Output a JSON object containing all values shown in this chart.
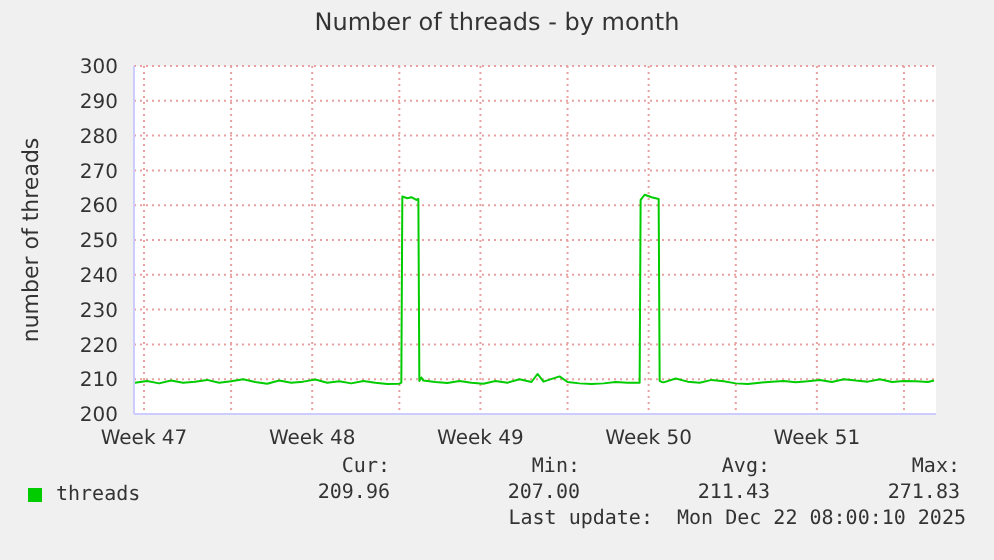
{
  "chart_data": {
    "type": "line",
    "title": "Number of threads - by month",
    "ylabel": "number of threads",
    "xlim": [
      "2025-11-18T23:00",
      "2025-12-22T08:00"
    ],
    "xticks": [
      {
        "value": "2025-11-19T09:00",
        "label": "Week 47"
      },
      {
        "value": "2025-11-23",
        "label": null
      },
      {
        "value": "2025-11-26T09:00",
        "label": "Week 48"
      },
      {
        "value": "2025-11-30",
        "label": null
      },
      {
        "value": "2025-12-03T09:00",
        "label": "Week 49"
      },
      {
        "value": "2025-12-07",
        "label": null
      },
      {
        "value": "2025-12-10T09:00",
        "label": "Week 50"
      },
      {
        "value": "2025-12-14",
        "label": null
      },
      {
        "value": "2025-12-17T09:00",
        "label": "Week 51"
      },
      {
        "value": "2025-12-21",
        "label": null
      }
    ],
    "ylim": [
      200,
      300
    ],
    "yticks": [
      200,
      210,
      220,
      230,
      240,
      250,
      260,
      270,
      280,
      290,
      300
    ],
    "grid": true,
    "legend": "bottom left",
    "marker": "none",
    "line_style": "solid",
    "series": [
      {
        "name": "threads",
        "color": "#00cc00",
        "x": [
          "2025-11-19T00:00",
          "2025-11-19T12:00",
          "2025-11-20T00:00",
          "2025-11-20T12:00",
          "2025-11-21T00:00",
          "2025-11-21T12:00",
          "2025-11-22T00:00",
          "2025-11-22T12:00",
          "2025-11-23T00:00",
          "2025-11-23T12:00",
          "2025-11-24T00:00",
          "2025-11-24T12:00",
          "2025-11-25T00:00",
          "2025-11-25T12:00",
          "2025-11-26T00:00",
          "2025-11-26T12:00",
          "2025-11-27T00:00",
          "2025-11-27T12:00",
          "2025-11-28T00:00",
          "2025-11-28T12:00",
          "2025-11-29T00:00",
          "2025-11-29T12:00",
          "2025-11-30T00:00",
          "2025-11-30T02:00",
          "2025-11-30T03:00",
          "2025-11-30T08:00",
          "2025-11-30T12:00",
          "2025-11-30T17:00",
          "2025-11-30T19:00",
          "2025-11-30T20:00",
          "2025-11-30T22:00",
          "2025-12-01T00:00",
          "2025-12-01T12:00",
          "2025-12-02T00:00",
          "2025-12-02T12:00",
          "2025-12-03T00:00",
          "2025-12-03T12:00",
          "2025-12-04T00:00",
          "2025-12-04T12:00",
          "2025-12-05T00:00",
          "2025-12-05T12:00",
          "2025-12-05T18:00",
          "2025-12-06T00:00",
          "2025-12-06T16:00",
          "2025-12-07T00:00",
          "2025-12-07T12:00",
          "2025-12-08T00:00",
          "2025-12-08T12:00",
          "2025-12-09T00:00",
          "2025-12-09T12:00",
          "2025-12-10T00:00",
          "2025-12-10T01:00",
          "2025-12-10T05:00",
          "2025-12-10T12:00",
          "2025-12-10T19:00",
          "2025-12-10T20:00",
          "2025-12-10T22:00",
          "2025-12-11T00:00",
          "2025-12-11T12:00",
          "2025-12-12T00:00",
          "2025-12-12T12:00",
          "2025-12-13T00:00",
          "2025-12-13T12:00",
          "2025-12-14T00:00",
          "2025-12-14T12:00",
          "2025-12-15T00:00",
          "2025-12-15T12:00",
          "2025-12-16T00:00",
          "2025-12-16T12:00",
          "2025-12-17T00:00",
          "2025-12-17T12:00",
          "2025-12-18T00:00",
          "2025-12-18T12:00",
          "2025-12-19T00:00",
          "2025-12-19T12:00",
          "2025-12-20T00:00",
          "2025-12-20T12:00",
          "2025-12-21T00:00",
          "2025-12-21T12:00",
          "2025-12-22T00:00",
          "2025-12-22T06:00"
        ],
        "values": [
          209,
          209.5,
          208.8,
          209.6,
          209,
          209.3,
          209.8,
          209,
          209.4,
          210,
          209.2,
          208.7,
          209.6,
          209,
          209.3,
          209.9,
          209,
          209.4,
          208.8,
          209.5,
          209,
          208.6,
          208.7,
          209,
          262.5,
          262,
          262.3,
          261.5,
          261.8,
          209.5,
          210.5,
          209.6,
          209.2,
          208.9,
          209.5,
          209,
          208.7,
          209.5,
          209,
          210,
          209.2,
          211.5,
          209.3,
          210.8,
          209.2,
          208.8,
          208.6,
          208.8,
          209.2,
          209,
          209,
          261.5,
          263,
          262.3,
          261.8,
          209.5,
          209.2,
          209.1,
          210.2,
          209.3,
          209,
          209.8,
          209.4,
          208.8,
          208.6,
          209,
          209.3,
          209.5,
          209.1,
          209.4,
          209.8,
          209.2,
          210,
          209.6,
          209.3,
          210,
          209.2,
          209.5,
          209.4,
          209.2,
          209.6
        ]
      }
    ],
    "annotations": [
      "Cur:",
      "Min:",
      "Avg:",
      "Max:",
      "209.96",
      "207.00",
      "211.43",
      "271.83",
      "Last update:  Mon Dec 22 08:00:10 2025"
    ]
  }
}
